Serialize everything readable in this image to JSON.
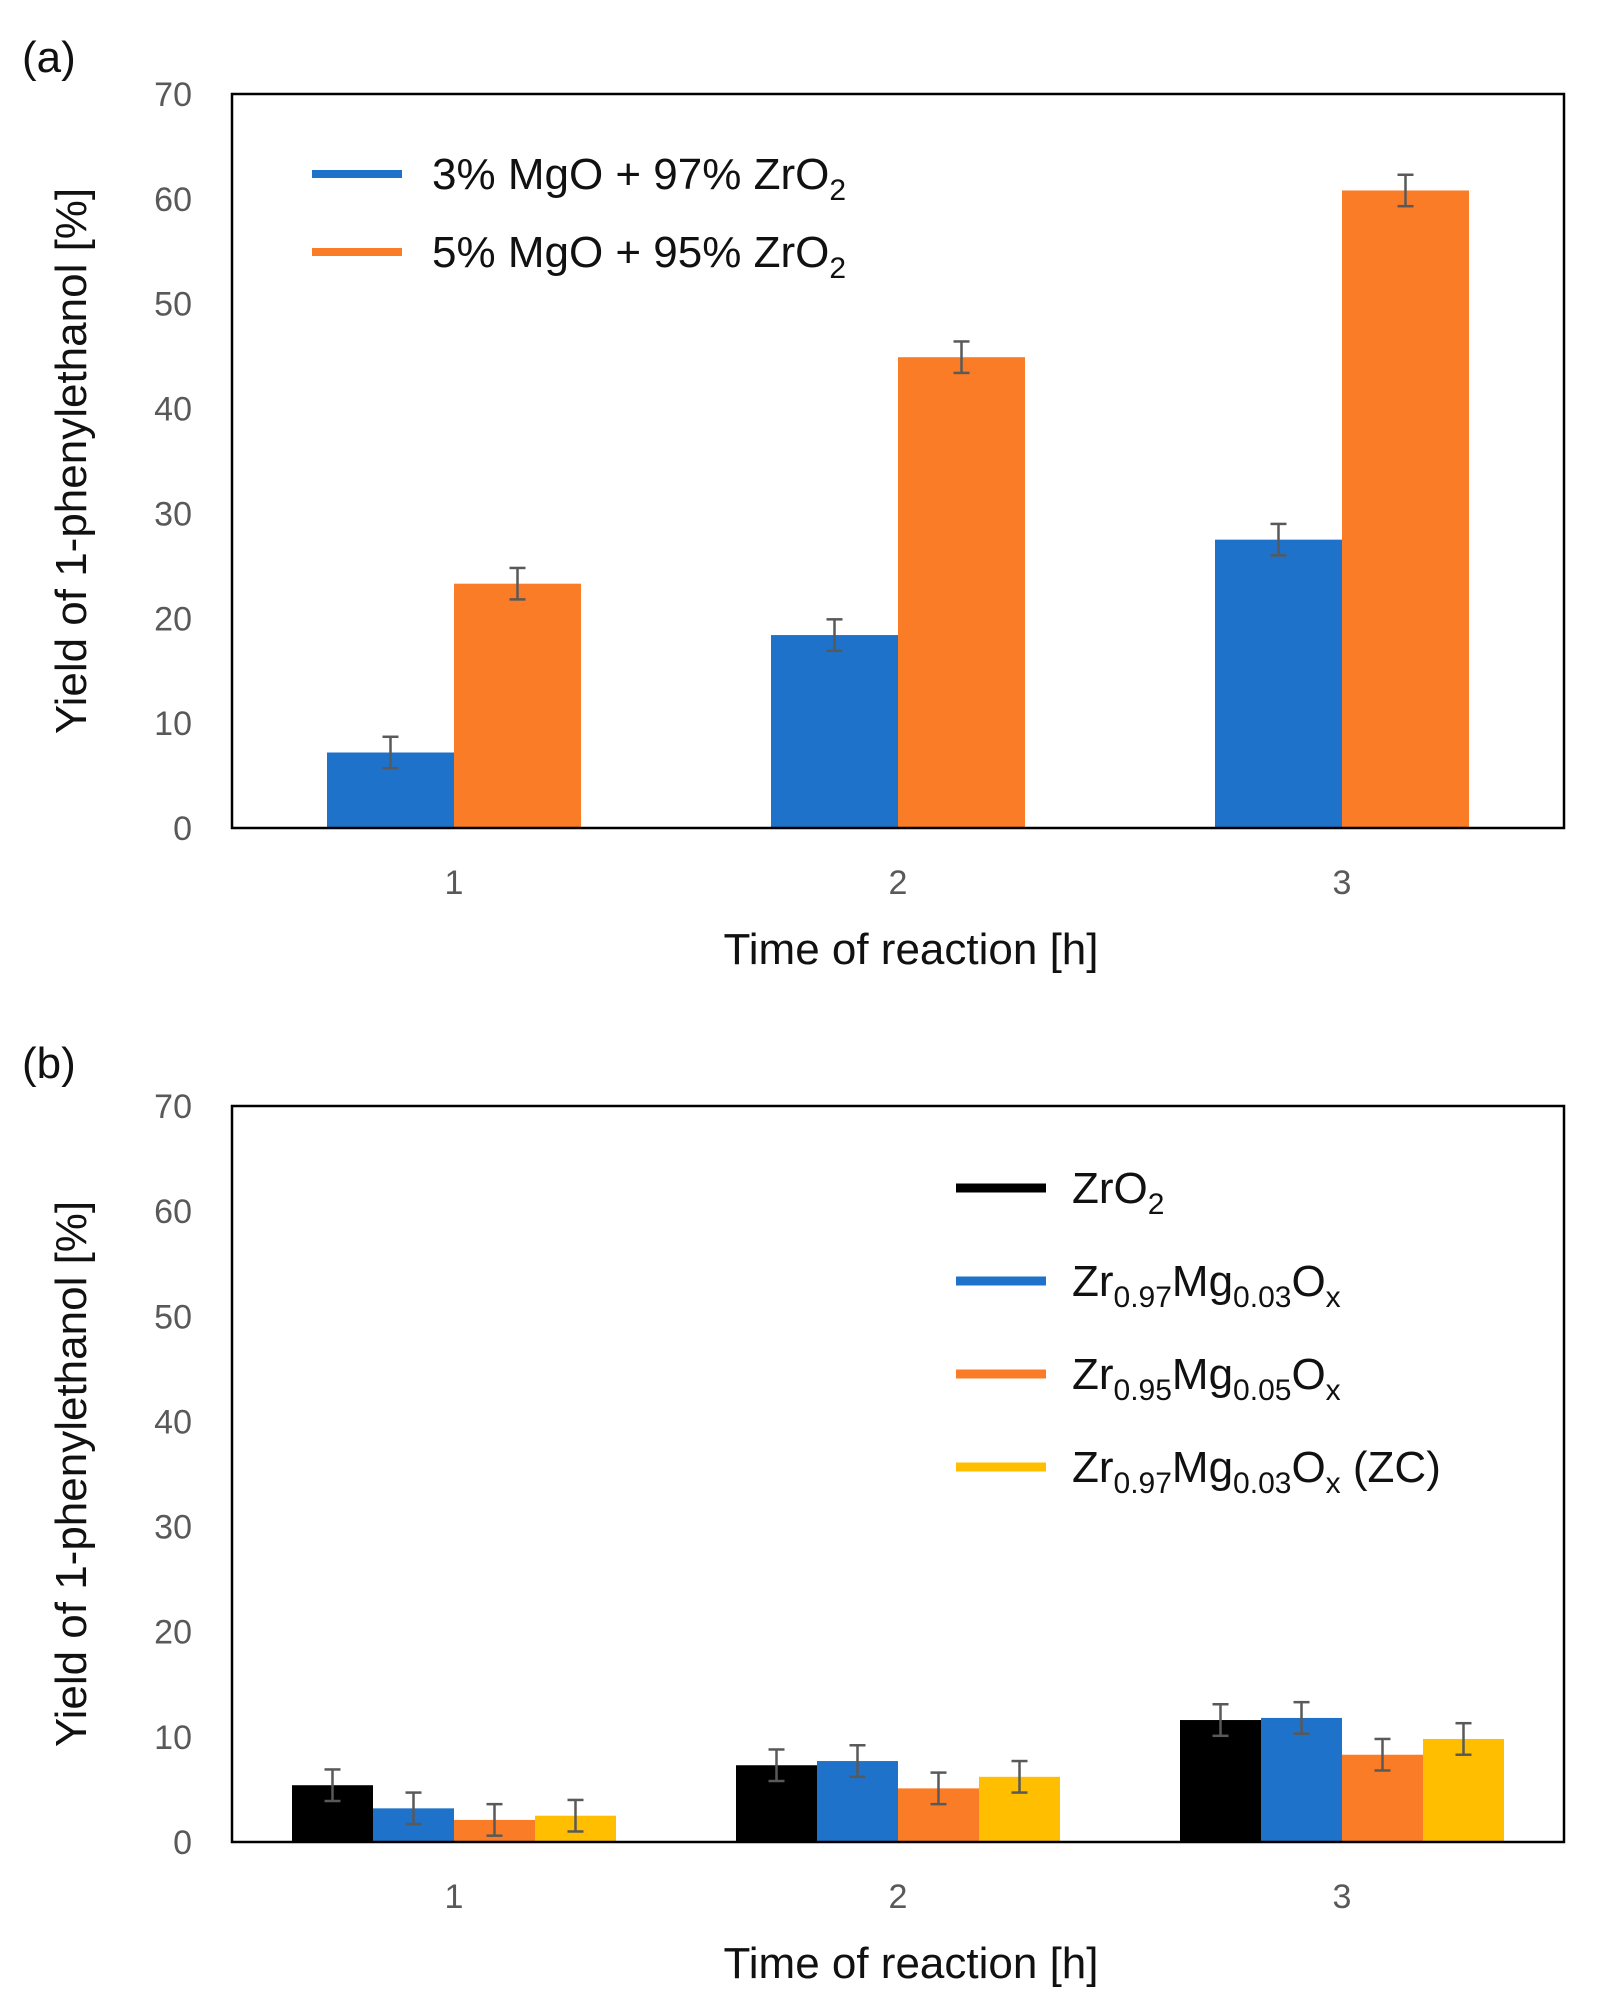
{
  "chart_data": [
    {
      "panel_label": "(a)",
      "type": "bar",
      "categories": [
        "1",
        "2",
        "3"
      ],
      "xlabel": "Time of reaction [h]",
      "ylabel": "Yield of 1-phenylethanol [%]",
      "ylim": [
        0,
        70
      ],
      "yticks": [
        "0",
        "10",
        "20",
        "30",
        "40",
        "50",
        "60",
        "70"
      ],
      "grid": false,
      "legend_position": "top-left",
      "series": [
        {
          "name": "3% MgO + 97% ZrO2",
          "legend": [
            {
              "t": "3% MgO + 97% ZrO",
              "s": "n"
            },
            {
              "t": "2",
              "s": "sub"
            }
          ],
          "color": "#1f72c9",
          "values": [
            7.2,
            18.4,
            27.5
          ],
          "errors": [
            1.5,
            1.5,
            1.5
          ]
        },
        {
          "name": "5% MgO + 95% ZrO2",
          "legend": [
            {
              "t": "5% MgO + 95% ZrO",
              "s": "n"
            },
            {
              "t": "2",
              "s": "sub"
            }
          ],
          "color": "#fb7c26",
          "values": [
            23.3,
            44.9,
            60.8
          ],
          "errors": [
            1.5,
            1.5,
            1.5
          ]
        }
      ]
    },
    {
      "panel_label": "(b)",
      "type": "bar",
      "categories": [
        "1",
        "2",
        "3"
      ],
      "xlabel": "Time of reaction [h]",
      "ylabel": "Yield of 1-phenylethanol [%]",
      "ylim": [
        0,
        70
      ],
      "yticks": [
        "0",
        "10",
        "20",
        "30",
        "40",
        "50",
        "60",
        "70"
      ],
      "grid": false,
      "legend_position": "top-right",
      "series": [
        {
          "name": "ZrO2",
          "legend": [
            {
              "t": "ZrO",
              "s": "n"
            },
            {
              "t": "2",
              "s": "sub"
            }
          ],
          "color": "#000000",
          "values": [
            5.4,
            7.3,
            11.6
          ],
          "errors": [
            1.5,
            1.5,
            1.5
          ]
        },
        {
          "name": "Zr0.97Mg0.03Ox",
          "legend": [
            {
              "t": "Zr",
              "s": "n"
            },
            {
              "t": "0.97",
              "s": "sub"
            },
            {
              "t": "Mg",
              "s": "n"
            },
            {
              "t": "0.03",
              "s": "sub"
            },
            {
              "t": "O",
              "s": "n"
            },
            {
              "t": "x",
              "s": "sub"
            }
          ],
          "color": "#1f72c9",
          "values": [
            3.2,
            7.7,
            11.8
          ],
          "errors": [
            1.5,
            1.5,
            1.5
          ]
        },
        {
          "name": "Zr0.95Mg0.05Ox",
          "legend": [
            {
              "t": "Zr",
              "s": "n"
            },
            {
              "t": "0.95",
              "s": "sub"
            },
            {
              "t": "Mg",
              "s": "n"
            },
            {
              "t": "0.05",
              "s": "sub"
            },
            {
              "t": "O",
              "s": "n"
            },
            {
              "t": "x",
              "s": "sub"
            }
          ],
          "color": "#fb7c26",
          "values": [
            2.1,
            5.1,
            8.3
          ],
          "errors": [
            1.5,
            1.5,
            1.5
          ]
        },
        {
          "name": "Zr0.97Mg0.03Ox (ZC)",
          "legend": [
            {
              "t": "Zr",
              "s": "n"
            },
            {
              "t": "0.97",
              "s": "sub"
            },
            {
              "t": "Mg",
              "s": "n"
            },
            {
              "t": "0.03",
              "s": "sub"
            },
            {
              "t": "O",
              "s": "n"
            },
            {
              "t": "x",
              "s": "sub"
            },
            {
              "t": " (ZC)",
              "s": "n"
            }
          ],
          "color": "#ffbf00",
          "values": [
            2.5,
            6.2,
            9.8
          ],
          "errors": [
            1.5,
            1.5,
            1.5
          ]
        }
      ]
    }
  ]
}
